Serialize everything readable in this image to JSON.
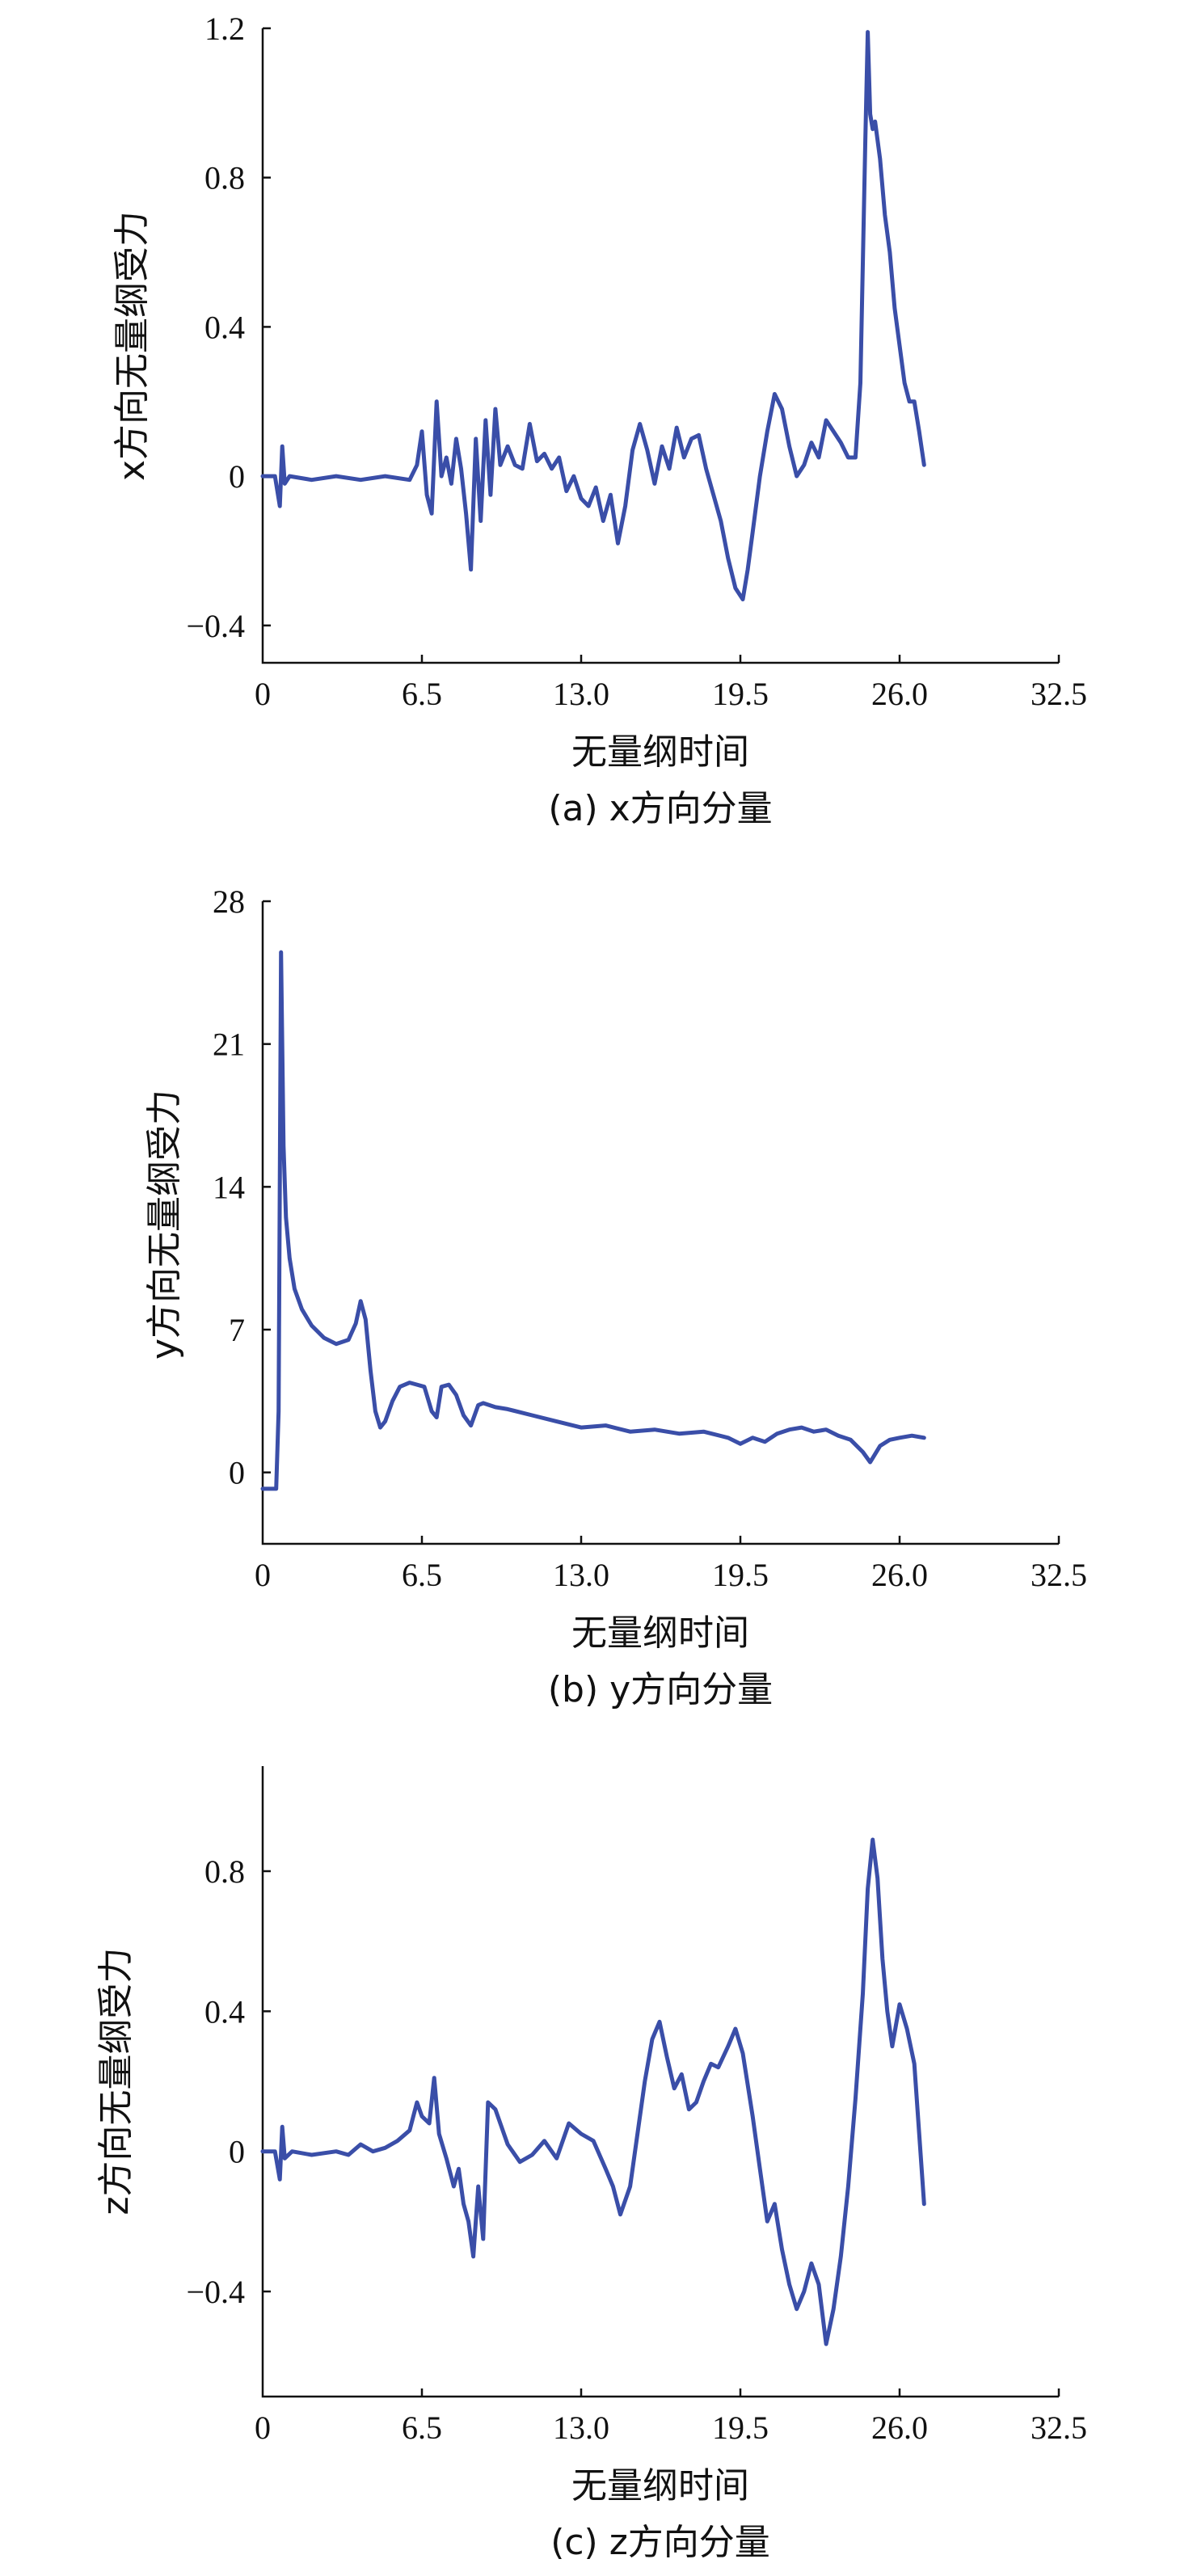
{
  "chart_data": [
    {
      "type": "line",
      "caption": "(a) x方向分量",
      "xlabel": "无量纲时间",
      "ylabel": "x方向无量纲受力",
      "xlim": [
        0,
        32.5
      ],
      "ylim": [
        -0.5,
        1.2
      ],
      "xticks": [
        0,
        6.5,
        13.0,
        19.5,
        26.0,
        32.5
      ],
      "xtick_labels": [
        "0",
        "6.5",
        "13.0",
        "19.5",
        "26.0",
        "32.5"
      ],
      "yticks": [
        -0.4,
        0,
        0.4,
        0.8,
        1.2
      ],
      "ytick_labels": [
        "−0.4",
        "0",
        "0.4",
        "0.8",
        "1.2"
      ],
      "color": "#3a4ea8",
      "series": [
        {
          "x": [
            0,
            0.5,
            0.7,
            0.8,
            0.9,
            1.1,
            2,
            3,
            4,
            5,
            6,
            6.3,
            6.5,
            6.7,
            6.9,
            7.1,
            7.3,
            7.5,
            7.7,
            7.9,
            8.1,
            8.3,
            8.5,
            8.7,
            8.9,
            9.1,
            9.3,
            9.5,
            9.7,
            10,
            10.3,
            10.6,
            10.9,
            11.2,
            11.5,
            11.8,
            12.1,
            12.4,
            12.7,
            13,
            13.3,
            13.6,
            13.9,
            14.2,
            14.5,
            14.8,
            15.1,
            15.4,
            15.7,
            16,
            16.3,
            16.6,
            16.9,
            17.2,
            17.5,
            17.8,
            18.1,
            18.4,
            18.7,
            19,
            19.3,
            19.6,
            19.8,
            20,
            20.3,
            20.6,
            20.9,
            21.2,
            21.5,
            21.8,
            22.1,
            22.4,
            22.7,
            23,
            23.3,
            23.6,
            23.9,
            24.2,
            24.4,
            24.6,
            24.7,
            24.8,
            24.9,
            25.0,
            25.2,
            25.4,
            25.6,
            25.8,
            26.0,
            26.2,
            26.4,
            26.6,
            26.8,
            27.0
          ],
          "y": [
            0,
            0,
            -0.08,
            0.08,
            -0.02,
            0,
            -0.01,
            0,
            -0.01,
            0,
            -0.01,
            0.03,
            0.12,
            -0.05,
            -0.1,
            0.2,
            0,
            0.05,
            -0.02,
            0.1,
            0.02,
            -0.1,
            -0.25,
            0.1,
            -0.12,
            0.15,
            -0.05,
            0.18,
            0.03,
            0.08,
            0.03,
            0.02,
            0.14,
            0.04,
            0.06,
            0.02,
            0.05,
            -0.04,
            0,
            -0.06,
            -0.08,
            -0.03,
            -0.12,
            -0.05,
            -0.18,
            -0.08,
            0.07,
            0.14,
            0.07,
            -0.02,
            0.08,
            0.02,
            0.13,
            0.05,
            0.1,
            0.11,
            0.02,
            -0.05,
            -0.12,
            -0.22,
            -0.3,
            -0.33,
            -0.25,
            -0.15,
            0,
            0.12,
            0.22,
            0.18,
            0.08,
            0,
            0.03,
            0.09,
            0.05,
            0.15,
            0.12,
            0.09,
            0.05,
            0.05,
            0.25,
            0.9,
            1.19,
            0.97,
            0.93,
            0.95,
            0.85,
            0.7,
            0.6,
            0.45,
            0.35,
            0.25,
            0.2,
            0.2,
            0.12,
            0.03
          ]
        }
      ]
    },
    {
      "type": "line",
      "caption": "(b) y方向分量",
      "xlabel": "无量纲时间",
      "ylabel": "y方向无量纲受力",
      "xlim": [
        0,
        32.5
      ],
      "ylim": [
        -3.5,
        28
      ],
      "xticks": [
        0,
        6.5,
        13.0,
        19.5,
        26.0,
        32.5
      ],
      "xtick_labels": [
        "0",
        "6.5",
        "13.0",
        "19.5",
        "26.0",
        "32.5"
      ],
      "yticks": [
        0,
        7,
        14,
        21,
        28
      ],
      "ytick_labels": [
        "0",
        "7",
        "14",
        "21",
        "28"
      ],
      "color": "#3a4ea8",
      "series": [
        {
          "x": [
            0,
            0.3,
            0.55,
            0.65,
            0.75,
            0.85,
            0.95,
            1.1,
            1.3,
            1.6,
            2.0,
            2.5,
            3.0,
            3.5,
            3.8,
            4.0,
            4.2,
            4.4,
            4.6,
            4.8,
            5.0,
            5.3,
            5.6,
            6.0,
            6.3,
            6.6,
            6.9,
            7.1,
            7.3,
            7.6,
            7.9,
            8.2,
            8.5,
            8.8,
            9.0,
            9.5,
            10,
            11,
            12,
            13,
            14,
            15,
            16,
            17,
            18,
            19,
            19.5,
            20,
            20.5,
            21,
            21.5,
            22,
            22.5,
            23,
            23.5,
            24,
            24.5,
            24.8,
            25.2,
            25.6,
            26.0,
            26.5,
            27.0
          ],
          "y": [
            -0.8,
            -0.8,
            -0.8,
            3,
            25.5,
            16,
            12.5,
            10.5,
            9.0,
            8.0,
            7.2,
            6.6,
            6.3,
            6.5,
            7.3,
            8.4,
            7.5,
            5.0,
            3.0,
            2.2,
            2.5,
            3.5,
            4.2,
            4.4,
            4.3,
            4.2,
            3.0,
            2.7,
            4.2,
            4.3,
            3.8,
            2.8,
            2.3,
            3.3,
            3.4,
            3.2,
            3.1,
            2.8,
            2.5,
            2.2,
            2.3,
            2.0,
            2.1,
            1.9,
            2.0,
            1.7,
            1.4,
            1.7,
            1.5,
            1.9,
            2.1,
            2.2,
            2.0,
            2.1,
            1.8,
            1.6,
            1.0,
            0.5,
            1.3,
            1.6,
            1.7,
            1.8,
            1.7
          ]
        }
      ]
    },
    {
      "type": "line",
      "caption": "(c) z方向分量",
      "xlabel": "无量纲时间",
      "ylabel": "z方向无量纲受力",
      "xlim": [
        0,
        32.5
      ],
      "ylim": [
        -0.7,
        1.1
      ],
      "xticks": [
        0,
        6.5,
        13.0,
        19.5,
        26.0,
        32.5
      ],
      "xtick_labels": [
        "0",
        "6.5",
        "13.0",
        "19.5",
        "26.0",
        "32.5"
      ],
      "yticks": [
        -0.4,
        0,
        0.4,
        0.8
      ],
      "ytick_labels": [
        "−0.4",
        "0",
        "0.4",
        "0.8"
      ],
      "color": "#3a4ea8",
      "series": [
        {
          "x": [
            0,
            0.5,
            0.7,
            0.8,
            0.9,
            1.2,
            2,
            3,
            3.5,
            4,
            4.5,
            5,
            5.5,
            6,
            6.3,
            6.5,
            6.8,
            7.0,
            7.2,
            7.5,
            7.8,
            8.0,
            8.2,
            8.4,
            8.6,
            8.8,
            9.0,
            9.2,
            9.5,
            10,
            10.5,
            11,
            11.5,
            12,
            12.5,
            13,
            13.5,
            14,
            14.3,
            14.6,
            15,
            15.3,
            15.6,
            15.9,
            16.2,
            16.5,
            16.8,
            17.1,
            17.4,
            17.7,
            18,
            18.3,
            18.6,
            19,
            19.3,
            19.6,
            20,
            20.3,
            20.6,
            20.9,
            21.2,
            21.5,
            21.8,
            22.1,
            22.4,
            22.7,
            23.0,
            23.3,
            23.6,
            23.9,
            24.2,
            24.5,
            24.7,
            24.9,
            25.1,
            25.3,
            25.5,
            25.7,
            26.0,
            26.3,
            26.6,
            27.0
          ],
          "y": [
            0,
            0,
            -0.08,
            0.07,
            -0.02,
            0,
            -0.01,
            0,
            -0.01,
            0.02,
            0,
            0.01,
            0.03,
            0.06,
            0.14,
            0.1,
            0.08,
            0.21,
            0.05,
            -0.02,
            -0.1,
            -0.05,
            -0.15,
            -0.2,
            -0.3,
            -0.1,
            -0.25,
            0.14,
            0.12,
            0.02,
            -0.03,
            -0.01,
            0.03,
            -0.02,
            0.08,
            0.05,
            0.03,
            -0.05,
            -0.1,
            -0.18,
            -0.1,
            0.05,
            0.2,
            0.32,
            0.37,
            0.27,
            0.18,
            0.22,
            0.12,
            0.14,
            0.2,
            0.25,
            0.24,
            0.3,
            0.35,
            0.28,
            0.1,
            -0.05,
            -0.2,
            -0.15,
            -0.28,
            -0.38,
            -0.45,
            -0.4,
            -0.32,
            -0.38,
            -0.55,
            -0.45,
            -0.3,
            -0.1,
            0.15,
            0.45,
            0.75,
            0.89,
            0.78,
            0.55,
            0.4,
            0.3,
            0.42,
            0.35,
            0.25,
            -0.15
          ]
        }
      ]
    }
  ]
}
